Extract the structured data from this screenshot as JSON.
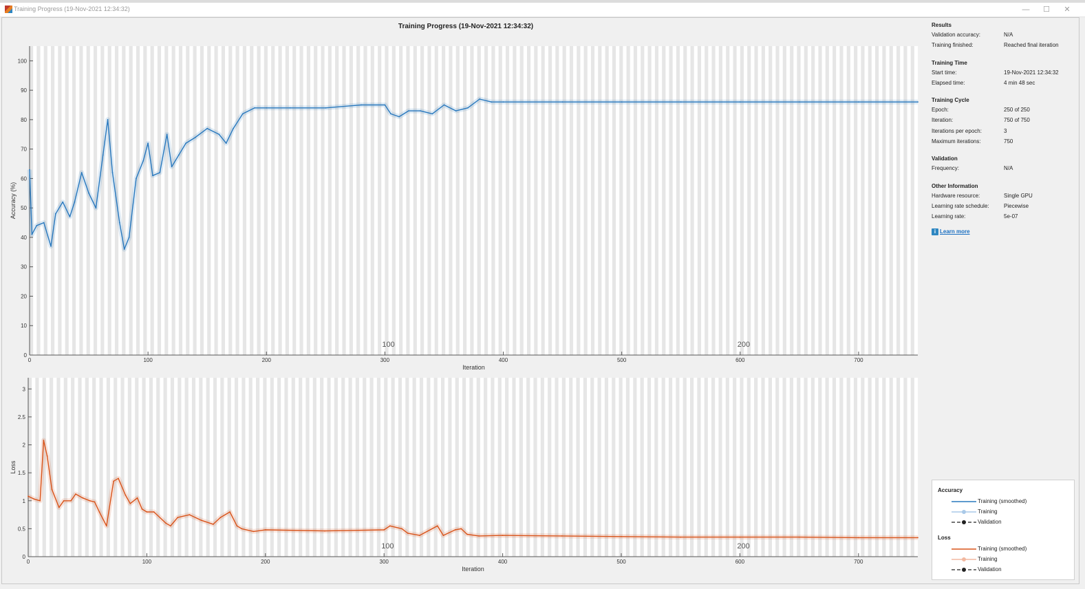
{
  "window": {
    "title": "Training Progress (19-Nov-2021 12:34:32)",
    "buttons": {
      "minimize": "—",
      "maximize": "☐",
      "close": "✕"
    }
  },
  "plot": {
    "title": "Training Progress (19-Nov-2021 12:34:32)"
  },
  "chart_data": [
    {
      "type": "line",
      "ylabel": "Accuracy (%)",
      "xlabel": "Iteration",
      "xlim": [
        0,
        750
      ],
      "ylim": [
        0,
        105
      ],
      "x_ticks": [
        0,
        100,
        200,
        300,
        400,
        500,
        600,
        700
      ],
      "y_ticks": [
        0,
        10,
        20,
        30,
        40,
        50,
        60,
        70,
        80,
        90,
        100
      ],
      "epoch_labels": [
        {
          "epoch": 100,
          "iteration": 303
        },
        {
          "epoch": 200,
          "iteration": 603
        }
      ],
      "grid": "vertical epoch bands",
      "series": [
        {
          "name": "Training (smoothed)",
          "color": "#2878be",
          "x": [
            0,
            2,
            6,
            12,
            18,
            22,
            28,
            34,
            38,
            44,
            50,
            56,
            62,
            66,
            70,
            76,
            80,
            84,
            90,
            96,
            100,
            104,
            110,
            116,
            120,
            126,
            132,
            140,
            150,
            160,
            166,
            172,
            180,
            190,
            200,
            220,
            250,
            280,
            300,
            305,
            312,
            320,
            330,
            340,
            350,
            360,
            370,
            380,
            390,
            400,
            450,
            500,
            550,
            600,
            650,
            700,
            750
          ],
          "y": [
            63,
            41,
            44,
            45,
            37,
            48,
            52,
            47,
            52,
            62,
            55,
            50,
            68,
            80,
            62,
            45,
            36,
            40,
            60,
            66,
            72,
            61,
            62,
            75,
            64,
            68,
            72,
            74,
            77,
            75,
            72,
            77,
            82,
            84,
            84,
            84,
            84,
            85,
            85,
            82,
            81,
            83,
            83,
            82,
            85,
            83,
            84,
            87,
            86,
            86,
            86,
            86,
            86,
            86,
            86,
            86,
            86
          ]
        }
      ]
    },
    {
      "type": "line",
      "ylabel": "Loss",
      "xlabel": "Iteration",
      "xlim": [
        0,
        750
      ],
      "ylim": [
        0,
        3.2
      ],
      "x_ticks": [
        0,
        100,
        200,
        300,
        400,
        500,
        600,
        700
      ],
      "y_ticks": [
        0,
        0.5,
        1,
        1.5,
        2,
        2.5,
        3
      ],
      "epoch_labels": [
        {
          "epoch": 100,
          "iteration": 303
        },
        {
          "epoch": 200,
          "iteration": 603
        }
      ],
      "grid": "vertical epoch bands",
      "series": [
        {
          "name": "Training (smoothed)",
          "color": "#d95319",
          "x": [
            0,
            5,
            10,
            13,
            16,
            20,
            26,
            30,
            36,
            40,
            46,
            52,
            56,
            60,
            66,
            72,
            76,
            82,
            86,
            92,
            96,
            100,
            106,
            116,
            120,
            126,
            136,
            146,
            156,
            162,
            170,
            176,
            180,
            190,
            200,
            250,
            300,
            305,
            315,
            320,
            330,
            345,
            350,
            360,
            365,
            370,
            380,
            400,
            450,
            500,
            550,
            600,
            650,
            700,
            750
          ],
          "y": [
            1.08,
            1.03,
            1.0,
            2.08,
            1.8,
            1.2,
            0.88,
            1.0,
            1.0,
            1.12,
            1.05,
            1.0,
            0.98,
            0.8,
            0.55,
            1.35,
            1.4,
            1.1,
            0.95,
            1.05,
            0.85,
            0.8,
            0.8,
            0.6,
            0.55,
            0.7,
            0.75,
            0.65,
            0.58,
            0.7,
            0.8,
            0.55,
            0.5,
            0.45,
            0.48,
            0.46,
            0.48,
            0.55,
            0.5,
            0.42,
            0.38,
            0.55,
            0.38,
            0.48,
            0.5,
            0.4,
            0.37,
            0.38,
            0.37,
            0.36,
            0.35,
            0.35,
            0.35,
            0.34,
            0.34
          ]
        }
      ]
    }
  ],
  "info": {
    "results_heading": "Results",
    "validation_accuracy": {
      "label": "Validation accuracy:",
      "value": "N/A"
    },
    "training_finished": {
      "label": "Training finished:",
      "value": "Reached final iteration"
    },
    "time_heading": "Training Time",
    "start_time": {
      "label": "Start time:",
      "value": "19-Nov-2021 12:34:32"
    },
    "elapsed_time": {
      "label": "Elapsed time:",
      "value": "4 min 48 sec"
    },
    "cycle_heading": "Training Cycle",
    "epoch": {
      "label": "Epoch:",
      "value": "250 of 250"
    },
    "iteration": {
      "label": "Iteration:",
      "value": "750 of 750"
    },
    "iter_per_epoch": {
      "label": "Iterations per epoch:",
      "value": "3"
    },
    "max_iterations": {
      "label": "Maximum iterations:",
      "value": "750"
    },
    "validation_heading": "Validation",
    "frequency": {
      "label": "Frequency:",
      "value": "N/A"
    },
    "other_heading": "Other Information",
    "hardware": {
      "label": "Hardware resource:",
      "value": "Single GPU"
    },
    "lr_schedule": {
      "label": "Learning rate schedule:",
      "value": "Piecewise"
    },
    "lr": {
      "label": "Learning rate:",
      "value": "5e-07"
    },
    "learn_more": "Learn more"
  },
  "legend": {
    "accuracy_heading": "Accuracy",
    "loss_heading": "Loss",
    "acc_smoothed": "Training (smoothed)",
    "acc_training": "Training",
    "acc_validation": "Validation",
    "loss_smoothed": "Training (smoothed)",
    "loss_training": "Training",
    "loss_validation": "Validation",
    "colors": {
      "accuracy": "#2878be",
      "accuracy_light": "#a9c9e8",
      "loss": "#d95319",
      "loss_light": "#f2b8a0"
    }
  }
}
